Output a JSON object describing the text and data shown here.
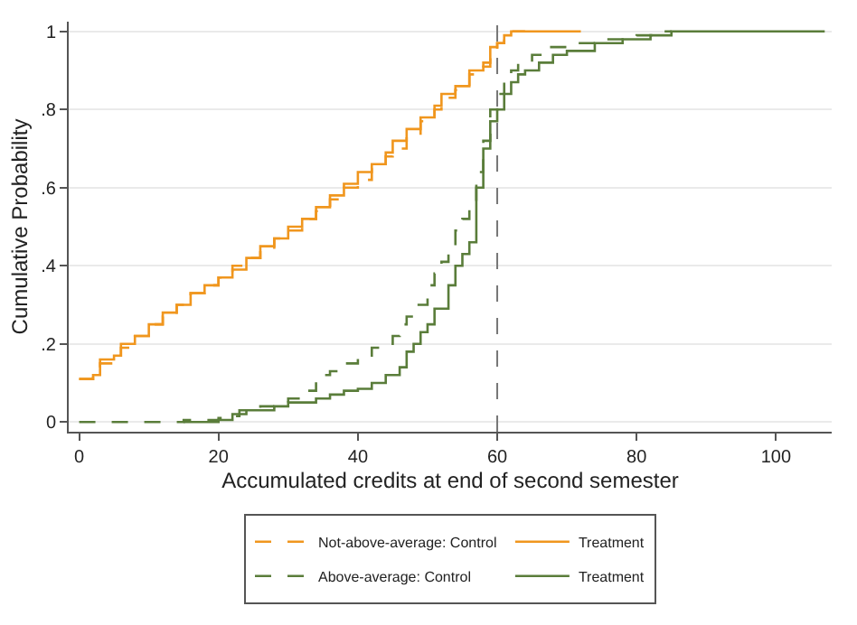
{
  "chart_data": {
    "type": "step",
    "xlabel": "Accumulated credits at end of second semester",
    "ylabel": "Cumulative Probability",
    "xlim": [
      -1.5,
      108
    ],
    "xticks": [
      0,
      20,
      40,
      60,
      80,
      100
    ],
    "ylim": [
      -0.025,
      1.025
    ],
    "yticks": [
      0,
      {
        "value": 0.2,
        "label": ".2"
      },
      {
        "value": 0.4,
        "label": ".4"
      },
      {
        "value": 0.6,
        "label": ".6"
      },
      {
        "value": 0.8,
        "label": ".8"
      },
      1
    ],
    "grid": "y",
    "legend": "bottom",
    "ref_lines": [
      {
        "axis": "x",
        "value": 60,
        "label": null,
        "color": "#777777",
        "line_style": "dashed"
      }
    ],
    "series": [
      {
        "name": "Not-above-average: Control",
        "color": "#f0961e",
        "line_style": "dashed",
        "x": [
          0,
          2,
          3,
          5,
          6,
          8,
          10,
          12,
          14,
          16,
          18,
          20,
          22,
          24,
          26,
          28,
          30,
          32,
          34,
          36,
          38,
          40,
          42,
          44,
          45,
          47,
          49,
          51,
          52,
          54,
          56,
          58,
          59,
          60,
          61,
          62,
          64
        ],
        "values": [
          0.11,
          0.12,
          0.15,
          0.17,
          0.19,
          0.22,
          0.25,
          0.27,
          0.3,
          0.33,
          0.35,
          0.37,
          0.4,
          0.42,
          0.44,
          0.47,
          0.49,
          0.52,
          0.54,
          0.57,
          0.6,
          0.62,
          0.65,
          0.68,
          0.7,
          0.73,
          0.77,
          0.8,
          0.83,
          0.85,
          0.89,
          0.91,
          0.95,
          0.97,
          0.99,
          1,
          1
        ]
      },
      {
        "name": "Treatment",
        "color": "#f0961e",
        "line_style": "solid",
        "x": [
          0,
          2,
          3,
          5,
          6,
          8,
          10,
          12,
          14,
          16,
          18,
          20,
          22,
          24,
          26,
          28,
          30,
          32,
          34,
          36,
          38,
          40,
          42,
          44,
          45,
          47,
          49,
          51,
          52,
          54,
          56,
          58,
          59,
          60,
          61,
          62,
          72
        ],
        "values": [
          0.11,
          0.12,
          0.16,
          0.17,
          0.2,
          0.22,
          0.25,
          0.28,
          0.3,
          0.33,
          0.35,
          0.37,
          0.39,
          0.42,
          0.45,
          0.47,
          0.5,
          0.52,
          0.55,
          0.58,
          0.61,
          0.64,
          0.66,
          0.69,
          0.72,
          0.75,
          0.78,
          0.81,
          0.84,
          0.86,
          0.9,
          0.92,
          0.96,
          0.97,
          0.99,
          1,
          1
        ]
      },
      {
        "name": "Above-average: Control",
        "color": "#5a7d3a",
        "line_style": "dashed",
        "x": [
          0,
          15,
          20,
          22,
          23,
          26,
          28,
          30,
          32,
          34,
          36,
          38,
          40,
          42,
          44,
          45,
          46,
          47,
          48,
          50,
          51,
          52,
          53,
          54,
          55,
          56,
          57,
          58,
          59,
          60,
          61,
          62,
          63,
          65,
          67,
          70,
          75,
          80,
          83,
          85
        ],
        "values": [
          0,
          0.005,
          0.01,
          0.015,
          0.03,
          0.04,
          0.05,
          0.06,
          0.08,
          0.12,
          0.13,
          0.15,
          0.17,
          0.19,
          0.2,
          0.22,
          0.25,
          0.27,
          0.3,
          0.35,
          0.38,
          0.41,
          0.45,
          0.49,
          0.52,
          0.55,
          0.64,
          0.72,
          0.8,
          0.84,
          0.88,
          0.9,
          0.92,
          0.94,
          0.96,
          0.97,
          0.98,
          0.99,
          1,
          1
        ]
      },
      {
        "name": "Treatment",
        "color": "#5a7d3a",
        "line_style": "solid",
        "x": [
          15,
          20,
          22,
          24,
          28,
          30,
          34,
          36,
          38,
          40,
          42,
          44,
          46,
          47,
          48,
          49,
          50,
          51,
          53,
          54,
          55,
          56,
          57,
          58,
          59,
          60,
          61,
          62,
          63,
          64,
          66,
          68,
          70,
          74,
          78,
          82,
          85,
          107
        ],
        "values": [
          0,
          0.005,
          0.02,
          0.03,
          0.04,
          0.05,
          0.06,
          0.07,
          0.08,
          0.085,
          0.1,
          0.12,
          0.14,
          0.18,
          0.2,
          0.23,
          0.25,
          0.29,
          0.35,
          0.4,
          0.43,
          0.46,
          0.6,
          0.7,
          0.77,
          0.8,
          0.84,
          0.87,
          0.89,
          0.9,
          0.92,
          0.94,
          0.95,
          0.97,
          0.98,
          0.99,
          1,
          1
        ]
      }
    ]
  }
}
